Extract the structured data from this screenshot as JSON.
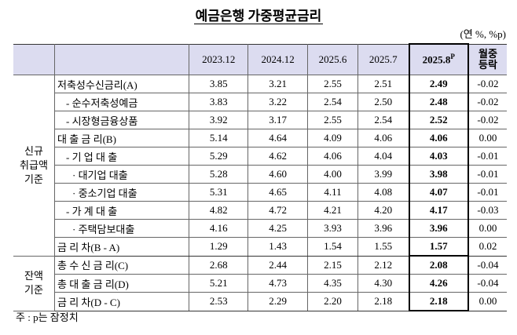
{
  "header": {
    "title": "예금은행 가중평균금리",
    "unit": "(연 %, %p)"
  },
  "table": {
    "columns": [
      "2023.12",
      "2024.12",
      "2025.6",
      "2025.7",
      "2025.8"
    ],
    "provisional_mark": "P",
    "change_header": [
      "월중",
      "등락"
    ],
    "groups": [
      {
        "label": [
          "신규",
          "취급액",
          "기준"
        ],
        "rows": [
          {
            "label": "저축성수신금리(A)",
            "values": [
              "3.85",
              "3.21",
              "2.55",
              "2.51",
              "2.49",
              "-0.02"
            ]
          },
          {
            "label": "- 순수저축성예금",
            "values": [
              "3.83",
              "3.22",
              "2.54",
              "2.50",
              "2.48",
              "-0.02"
            ]
          },
          {
            "label": "- 시장형금융상품",
            "values": [
              "3.92",
              "3.17",
              "2.55",
              "2.54",
              "2.52",
              "-0.02"
            ]
          },
          {
            "label": "대 출 금 리(B)",
            "values": [
              "5.14",
              "4.64",
              "4.09",
              "4.06",
              "4.06",
              "0.00"
            ]
          },
          {
            "label": "- 기 업 대 출",
            "values": [
              "5.29",
              "4.62",
              "4.06",
              "4.04",
              "4.03",
              "-0.01"
            ]
          },
          {
            "label": "· 대기업 대출",
            "values": [
              "5.28",
              "4.60",
              "4.00",
              "3.99",
              "3.98",
              "-0.01"
            ]
          },
          {
            "label": "· 중소기업 대출",
            "values": [
              "5.31",
              "4.65",
              "4.11",
              "4.08",
              "4.07",
              "-0.01"
            ]
          },
          {
            "label": "- 가 계 대 출",
            "values": [
              "4.82",
              "4.72",
              "4.21",
              "4.20",
              "4.17",
              "-0.03"
            ]
          },
          {
            "label": "· 주택담보대출",
            "values": [
              "4.16",
              "4.25",
              "3.93",
              "3.96",
              "3.96",
              "0.00"
            ]
          },
          {
            "label": "금 리 차(B - A)",
            "values": [
              "1.29",
              "1.43",
              "1.54",
              "1.55",
              "1.57",
              "0.02"
            ]
          }
        ]
      },
      {
        "label": [
          "잔액",
          "기준"
        ],
        "rows": [
          {
            "label": "총 수 신 금 리(C)",
            "values": [
              "2.68",
              "2.44",
              "2.15",
              "2.12",
              "2.08",
              "-0.04"
            ]
          },
          {
            "label": "총 대 출 금 리(D)",
            "values": [
              "5.21",
              "4.73",
              "4.35",
              "4.30",
              "4.26",
              "-0.04"
            ]
          },
          {
            "label": "금 리 차(D - C)",
            "values": [
              "2.53",
              "2.29",
              "2.20",
              "2.18",
              "2.18",
              "0.00"
            ]
          }
        ]
      }
    ]
  },
  "footnote": "주 : p는 잠정치"
}
